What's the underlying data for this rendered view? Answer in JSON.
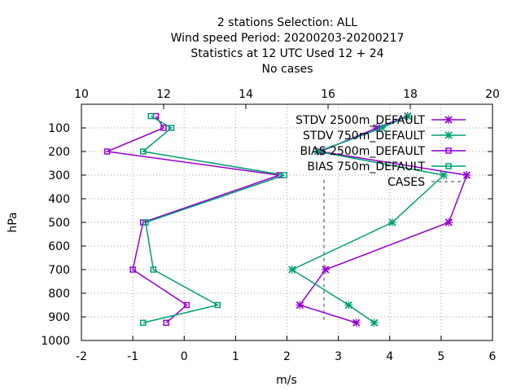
{
  "chart_data": {
    "type": "line",
    "title_lines": [
      "2 stations Selection: ALL",
      "Wind speed  Period: 20200203-20200217",
      "Statistics at 12 UTC  Used  12 + 24",
      "No cases"
    ],
    "xlabel": "m/s",
    "ylabel": "hPa",
    "x_bottom": {
      "lim": [
        -2,
        6
      ],
      "ticks": [
        "-2",
        "-1",
        "0",
        "1",
        "2",
        "3",
        "4",
        "5",
        "6"
      ]
    },
    "x_top": {
      "lim": [
        10,
        20
      ],
      "ticks": [
        "10",
        "12",
        "14",
        "16",
        "18",
        "20"
      ]
    },
    "y": {
      "lim": [
        1000,
        0
      ],
      "reversed": true,
      "ticks": [
        "100",
        "200",
        "300",
        "400",
        "500",
        "600",
        "700",
        "800",
        "900",
        "1000"
      ]
    },
    "grid": true,
    "legend_position": "top-right",
    "series": [
      {
        "name": "STDV 2500m_DEFAULT",
        "color": "#9400d3",
        "marker": "x",
        "points": [
          [
            4.35,
            50
          ],
          [
            3.75,
            100
          ],
          [
            2.65,
            200
          ],
          [
            5.5,
            300
          ],
          [
            5.15,
            500
          ],
          [
            2.75,
            700
          ],
          [
            2.25,
            850
          ],
          [
            3.35,
            925
          ]
        ]
      },
      {
        "name": "STDV 750m_DEFAULT",
        "color": "#009e73",
        "marker": "x",
        "points": [
          [
            4.35,
            50
          ],
          [
            3.85,
            100
          ],
          [
            2.6,
            200
          ],
          [
            5.05,
            300
          ],
          [
            4.05,
            500
          ],
          [
            2.1,
            700
          ],
          [
            3.2,
            850
          ],
          [
            3.7,
            925
          ]
        ]
      },
      {
        "name": "BIAS 2500m_DEFAULT",
        "color": "#9400d3",
        "marker": "square",
        "points": [
          [
            -0.55,
            50
          ],
          [
            -0.4,
            100
          ],
          [
            -1.5,
            200
          ],
          [
            1.85,
            300
          ],
          [
            -0.8,
            500
          ],
          [
            -1.0,
            700
          ],
          [
            0.05,
            850
          ],
          [
            -0.35,
            925
          ]
        ]
      },
      {
        "name": "BIAS 750m_DEFAULT",
        "color": "#009e73",
        "marker": "square",
        "points": [
          [
            -0.65,
            50
          ],
          [
            -0.25,
            100
          ],
          [
            -0.8,
            200
          ],
          [
            1.95,
            300
          ],
          [
            -0.75,
            500
          ],
          [
            -0.6,
            700
          ],
          [
            0.65,
            850
          ],
          [
            -0.8,
            925
          ]
        ]
      }
    ],
    "cases": {
      "name": "CASES",
      "color": "#808080",
      "x_top": 15.9,
      "p_top": 320,
      "p_bottom": 925
    }
  }
}
